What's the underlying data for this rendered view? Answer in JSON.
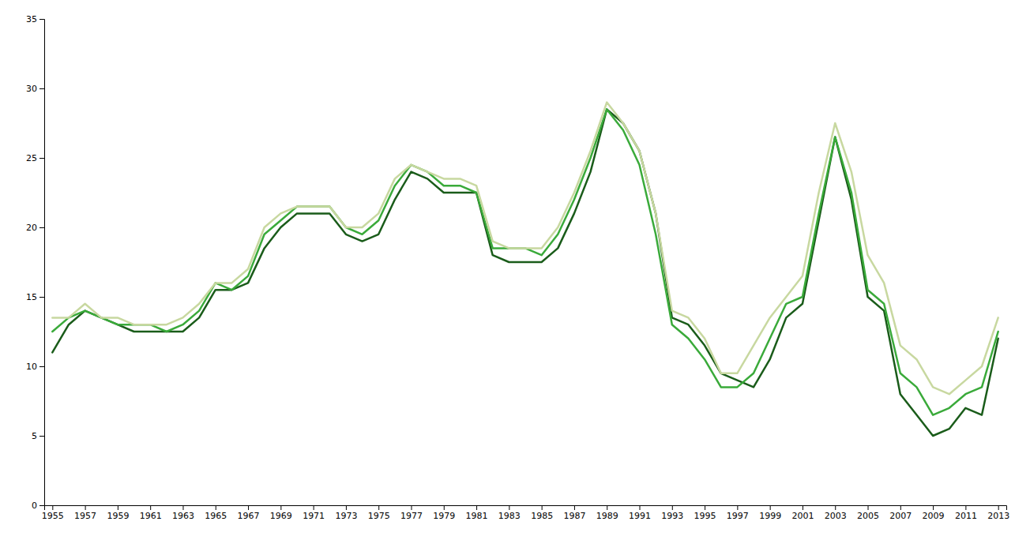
{
  "chart_data": {
    "type": "line",
    "x": [
      1955,
      1956,
      1957,
      1958,
      1959,
      1960,
      1961,
      1962,
      1963,
      1964,
      1965,
      1966,
      1967,
      1968,
      1969,
      1970,
      1971,
      1972,
      1973,
      1974,
      1975,
      1976,
      1977,
      1978,
      1979,
      1980,
      1981,
      1982,
      1983,
      1984,
      1985,
      1986,
      1987,
      1988,
      1989,
      1990,
      1991,
      1992,
      1993,
      1994,
      1995,
      1996,
      1997,
      1998,
      1999,
      2000,
      2001,
      2002,
      2003,
      2004,
      2005,
      2006,
      2007,
      2008,
      2009,
      2010,
      2011,
      2012,
      2013
    ],
    "series": [
      {
        "color": "#1a5c1a",
        "values": [
          11.0,
          13.0,
          14.0,
          13.5,
          13.0,
          12.5,
          12.5,
          12.5,
          12.5,
          13.5,
          15.5,
          15.5,
          16.0,
          18.5,
          20.0,
          21.0,
          21.0,
          21.0,
          19.5,
          19.0,
          19.5,
          22.0,
          24.0,
          23.5,
          22.5,
          22.5,
          22.5,
          18.0,
          17.5,
          17.5,
          17.5,
          18.5,
          21.0,
          24.0,
          28.5,
          27.5,
          25.5,
          21.0,
          13.5,
          13.0,
          11.5,
          9.5,
          9.0,
          8.5,
          10.5,
          13.5,
          14.5,
          20.5,
          26.5,
          22.0,
          15.0,
          14.0,
          8.0,
          6.5,
          5.0,
          5.5,
          7.0,
          6.5,
          12.0
        ]
      },
      {
        "color": "#3aaa3a",
        "values": [
          12.5,
          13.5,
          14.0,
          13.5,
          13.0,
          13.0,
          13.0,
          12.5,
          13.0,
          14.0,
          16.0,
          15.5,
          16.5,
          19.5,
          20.5,
          21.5,
          21.5,
          21.5,
          20.0,
          19.5,
          20.5,
          23.0,
          24.5,
          24.0,
          23.0,
          23.0,
          22.5,
          18.5,
          18.5,
          18.5,
          18.0,
          19.5,
          22.0,
          25.0,
          28.5,
          27.0,
          24.5,
          19.5,
          13.0,
          12.0,
          10.5,
          8.5,
          8.5,
          9.5,
          12.0,
          14.5,
          15.0,
          21.0,
          26.5,
          22.5,
          15.5,
          14.5,
          9.5,
          8.5,
          6.5,
          7.0,
          8.0,
          8.5,
          12.5
        ]
      },
      {
        "color": "#c8d8a0",
        "values": [
          13.5,
          13.5,
          14.5,
          13.5,
          13.5,
          13.0,
          13.0,
          13.0,
          13.5,
          14.5,
          16.0,
          16.0,
          17.0,
          20.0,
          21.0,
          21.5,
          21.5,
          21.5,
          20.0,
          20.0,
          21.0,
          23.5,
          24.5,
          24.0,
          23.5,
          23.5,
          23.0,
          19.0,
          18.5,
          18.5,
          18.5,
          20.0,
          22.5,
          25.5,
          29.0,
          27.5,
          25.5,
          21.0,
          14.0,
          13.5,
          12.0,
          9.5,
          9.5,
          11.5,
          13.5,
          15.0,
          16.5,
          22.5,
          27.5,
          24.0,
          18.0,
          16.0,
          11.5,
          10.5,
          8.5,
          8.0,
          9.0,
          10.0,
          13.5
        ]
      }
    ],
    "xlim": [
      1954.5,
      2013.5
    ],
    "xticks": [
      1955,
      1957,
      1959,
      1961,
      1963,
      1965,
      1967,
      1969,
      1971,
      1973,
      1975,
      1977,
      1979,
      1981,
      1983,
      1985,
      1987,
      1989,
      1991,
      1993,
      1995,
      1997,
      1999,
      2001,
      2003,
      2005,
      2007,
      2009,
      2011,
      2013
    ],
    "ylim": [
      0,
      35
    ],
    "yticks": [
      0,
      5,
      10,
      15,
      20,
      25,
      30,
      35
    ],
    "grid": false
  }
}
